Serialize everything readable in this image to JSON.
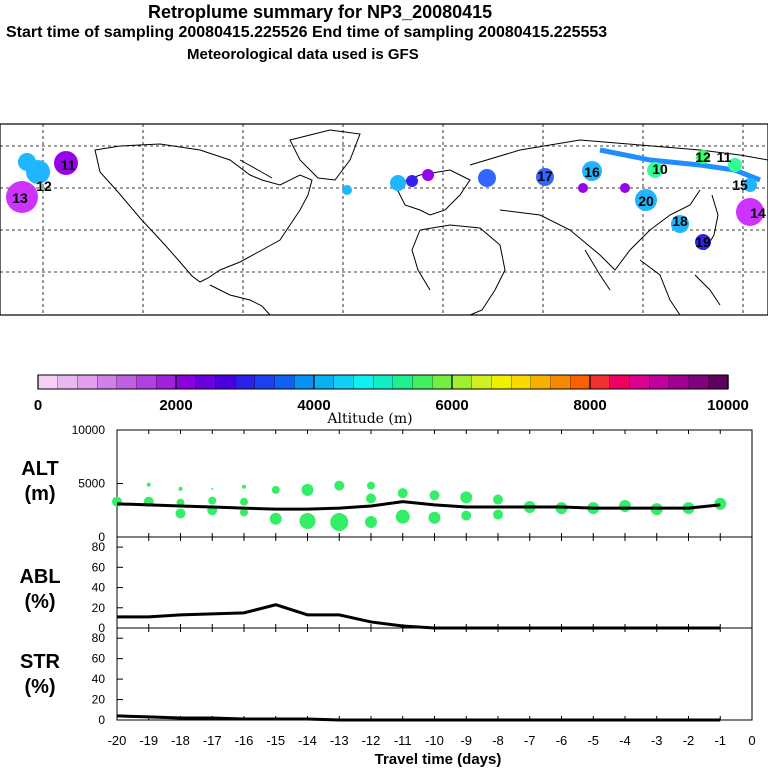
{
  "header": {
    "title": "Retroplume summary for NP3_20080415",
    "sampling": "Start time of sampling 20080415.225526     End time of sampling 20080415.225553",
    "met": "Meteorological data used is GFS"
  },
  "colorbar": {
    "label": "Altitude (m)",
    "ticks": [
      "0",
      "2000",
      "4000",
      "6000",
      "8000",
      "10000"
    ],
    "colors": [
      "#f4d0f4",
      "#eab8f0",
      "#e0a0ec",
      "#d080e8",
      "#c060e4",
      "#b040e0",
      "#a020dc",
      "#8c00e0",
      "#6a00e0",
      "#4a00e0",
      "#2a20e8",
      "#1c40f0",
      "#1060f4",
      "#0890f4",
      "#08b0f4",
      "#10d0f4",
      "#10f0f0",
      "#10f0c0",
      "#20f090",
      "#40f060",
      "#70f040",
      "#a0f030",
      "#d0f020",
      "#f0f000",
      "#f8d800",
      "#f8b000",
      "#f88800",
      "#f86000",
      "#f03030",
      "#f00060",
      "#e00090",
      "#c000a0",
      "#a00090",
      "#800080",
      "#600060"
    ]
  },
  "map": {
    "labels": [
      {
        "text": "13",
        "color": "#cc33ff"
      },
      {
        "text": "12",
        "color": "#cc33ff"
      },
      {
        "text": "11",
        "color": "#9900ee"
      },
      {
        "text": "14",
        "color": "#cc33ff"
      },
      {
        "text": "16",
        "color": "#1fb6ff"
      },
      {
        "text": "20",
        "color": "#1fb6ff"
      },
      {
        "text": "18",
        "color": "#1fb6ff"
      },
      {
        "text": "19",
        "color": "#3366ff"
      },
      {
        "text": "17",
        "color": "#1fb6ff"
      },
      {
        "text": "12",
        "color": "#33ff66"
      },
      {
        "text": "10",
        "color": "#33ff99"
      },
      {
        "text": "15",
        "color": "#1fb6ff"
      },
      {
        "text": "11",
        "color": "#33ff66"
      }
    ]
  },
  "chart_data": [
    {
      "type": "scatter+line",
      "panel": "ALT (m)",
      "ylabel": "ALT\n(m)",
      "ylim": [
        0,
        10000
      ],
      "yticks": [
        "10000",
        "5000",
        "0"
      ],
      "x": [
        -20,
        -19,
        -18,
        -17,
        -16,
        -15,
        -14,
        -13,
        -12,
        -11,
        -10,
        -9,
        -8,
        -7,
        -6,
        -5,
        -4,
        -3,
        -2,
        -1
      ],
      "median_line": [
        3100,
        3000,
        2900,
        2800,
        2700,
        2600,
        2600,
        2700,
        2900,
        3300,
        3000,
        2800,
        2800,
        2800,
        2800,
        2700,
        2700,
        2700,
        2700,
        3000
      ],
      "points": [
        {
          "x": -20,
          "y": 3300,
          "s": 5
        },
        {
          "x": -19,
          "y": 3300,
          "s": 5
        },
        {
          "x": -19,
          "y": 4900,
          "s": 2
        },
        {
          "x": -18,
          "y": 2200,
          "s": 5
        },
        {
          "x": -18,
          "y": 3200,
          "s": 4
        },
        {
          "x": -18,
          "y": 4500,
          "s": 2
        },
        {
          "x": -17,
          "y": 2500,
          "s": 5
        },
        {
          "x": -17,
          "y": 3400,
          "s": 4
        },
        {
          "x": -17,
          "y": 4500,
          "s": 1
        },
        {
          "x": -16,
          "y": 2300,
          "s": 4
        },
        {
          "x": -16,
          "y": 3300,
          "s": 4
        },
        {
          "x": -16,
          "y": 4700,
          "s": 2
        },
        {
          "x": -15,
          "y": 1700,
          "s": 6
        },
        {
          "x": -15,
          "y": 4400,
          "s": 4
        },
        {
          "x": -14,
          "y": 1500,
          "s": 8
        },
        {
          "x": -14,
          "y": 4400,
          "s": 6
        },
        {
          "x": -13,
          "y": 1400,
          "s": 9
        },
        {
          "x": -13,
          "y": 4800,
          "s": 5
        },
        {
          "x": -12,
          "y": 1400,
          "s": 6
        },
        {
          "x": -12,
          "y": 3600,
          "s": 5
        },
        {
          "x": -12,
          "y": 4800,
          "s": 4
        },
        {
          "x": -11,
          "y": 1900,
          "s": 7
        },
        {
          "x": -11,
          "y": 4100,
          "s": 5
        },
        {
          "x": -10,
          "y": 1800,
          "s": 6
        },
        {
          "x": -10,
          "y": 3900,
          "s": 5
        },
        {
          "x": -9,
          "y": 2000,
          "s": 5
        },
        {
          "x": -9,
          "y": 3700,
          "s": 6
        },
        {
          "x": -8,
          "y": 2100,
          "s": 5
        },
        {
          "x": -8,
          "y": 3500,
          "s": 5
        },
        {
          "x": -7,
          "y": 2800,
          "s": 6
        },
        {
          "x": -6,
          "y": 2700,
          "s": 6
        },
        {
          "x": -5,
          "y": 2700,
          "s": 6
        },
        {
          "x": -4,
          "y": 2900,
          "s": 6
        },
        {
          "x": -3,
          "y": 2600,
          "s": 6
        },
        {
          "x": -2,
          "y": 2700,
          "s": 6
        },
        {
          "x": -1,
          "y": 3100,
          "s": 6
        }
      ]
    },
    {
      "type": "line",
      "panel": "ABL (%)",
      "ylabel": "ABL\n(%)",
      "ylim": [
        0,
        90
      ],
      "yticks": [
        "80",
        "60",
        "40",
        "20",
        "0"
      ],
      "x": [
        -20,
        -19,
        -18,
        -17,
        -16,
        -15,
        -14,
        -13,
        -12,
        -11,
        -10,
        -9,
        -8,
        -7,
        -6,
        -5,
        -4,
        -3,
        -2,
        -1
      ],
      "values": [
        11,
        11,
        13,
        14,
        15,
        23,
        13,
        13,
        6,
        2,
        0,
        0,
        0,
        0,
        0,
        0,
        0,
        0,
        0,
        0
      ]
    },
    {
      "type": "line",
      "panel": "STR (%)",
      "ylabel": "STR\n(%)",
      "ylim": [
        0,
        90
      ],
      "yticks": [
        "80",
        "60",
        "40",
        "20",
        "0"
      ],
      "x": [
        -20,
        -19,
        -18,
        -17,
        -16,
        -15,
        -14,
        -13,
        -12,
        -11,
        -10,
        -9,
        -8,
        -7,
        -6,
        -5,
        -4,
        -3,
        -2,
        -1
      ],
      "values": [
        4,
        3,
        2,
        2,
        1,
        1,
        1,
        0,
        0,
        0,
        0,
        0,
        0,
        0,
        0,
        0,
        0,
        0,
        0,
        0
      ]
    }
  ],
  "xaxis": {
    "label": "Travel time (days)",
    "ticks": [
      "-20",
      "-19",
      "-18",
      "-17",
      "-16",
      "-15",
      "-14",
      "-13",
      "-12",
      "-11",
      "-10",
      "-9",
      "-8",
      "-7",
      "-6",
      "-5",
      "-4",
      "-3",
      "-2",
      "-1",
      "0"
    ]
  }
}
